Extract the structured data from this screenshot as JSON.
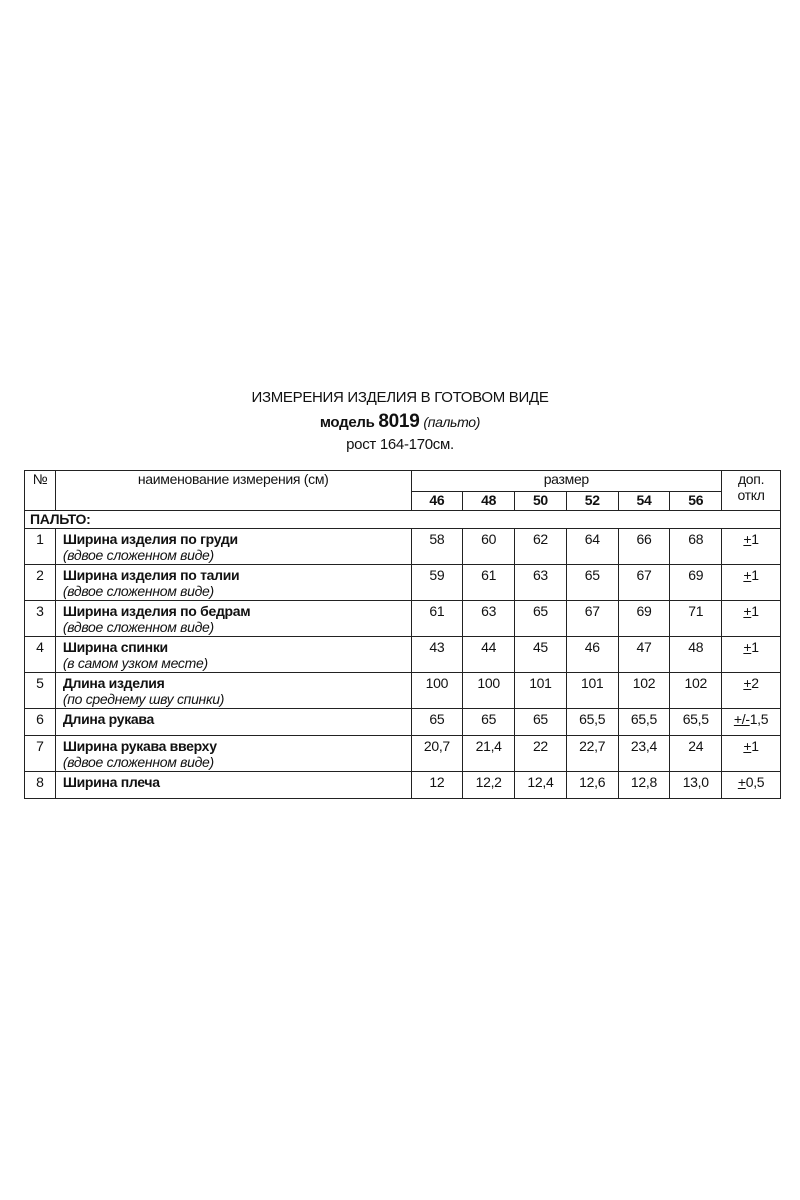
{
  "title": {
    "line1": "ИЗМЕРЕНИЯ ИЗДЕЛИЯ В ГОТОВОМ ВИДЕ",
    "model_label": "модель",
    "model_number": "8019",
    "model_type": "(пальто)",
    "height": "рост 164-170см."
  },
  "table": {
    "headers": {
      "no": "№",
      "name": "наименование измерения (см)",
      "size": "размер",
      "tol_line1": "доп.",
      "tol_line2": "откл"
    },
    "sizes": [
      "46",
      "48",
      "50",
      "52",
      "54",
      "56"
    ],
    "section": "ПАЛЬТО:",
    "rows": [
      {
        "no": "1",
        "name": "Ширина изделия по груди",
        "note": "(вдвое сложенном виде)",
        "values": [
          "58",
          "60",
          "62",
          "64",
          "66",
          "68"
        ],
        "tol_sign": "+",
        "tol_value": "1"
      },
      {
        "no": "2",
        "name": "Ширина изделия по талии",
        "note": "(вдвое сложенном виде)",
        "values": [
          "59",
          "61",
          "63",
          "65",
          "67",
          "69"
        ],
        "tol_sign": "+",
        "tol_value": "1"
      },
      {
        "no": "3",
        "name": "Ширина изделия по бедрам",
        "note": "(вдвое сложенном виде)",
        "values": [
          "61",
          "63",
          "65",
          "67",
          "69",
          "71"
        ],
        "tol_sign": "+",
        "tol_value": "1"
      },
      {
        "no": "4",
        "name": "Ширина спинки",
        "note": " (в самом узком месте)",
        "values": [
          "43",
          "44",
          "45",
          "46",
          "47",
          "48"
        ],
        "tol_sign": "+",
        "tol_value": "1"
      },
      {
        "no": "5",
        "name": "Длина изделия",
        "note": " (по среднему шву спинки)",
        "values": [
          "100",
          "100",
          "101",
          "101",
          "102",
          "102"
        ],
        "tol_sign": "+",
        "tol_value": "2"
      },
      {
        "no": "6",
        "name": "Длина рукава",
        "note": "",
        "values": [
          "65",
          "65",
          "65",
          "65,5",
          "65,5",
          "65,5"
        ],
        "tol_sign": "+/-",
        "tol_value": "1,5"
      },
      {
        "no": "7",
        "name": "Ширина рукава вверху",
        "note": "(вдвое сложенном виде)",
        "values": [
          "20,7",
          "21,4",
          "22",
          "22,7",
          "23,4",
          "24"
        ],
        "tol_sign": "+",
        "tol_value": "1"
      },
      {
        "no": "8",
        "name": "Ширина плеча",
        "note": "",
        "values": [
          "12",
          "12,2",
          "12,4",
          "12,6",
          "12,8",
          "13,0"
        ],
        "tol_sign": "+",
        "tol_value": "0,5"
      }
    ]
  }
}
